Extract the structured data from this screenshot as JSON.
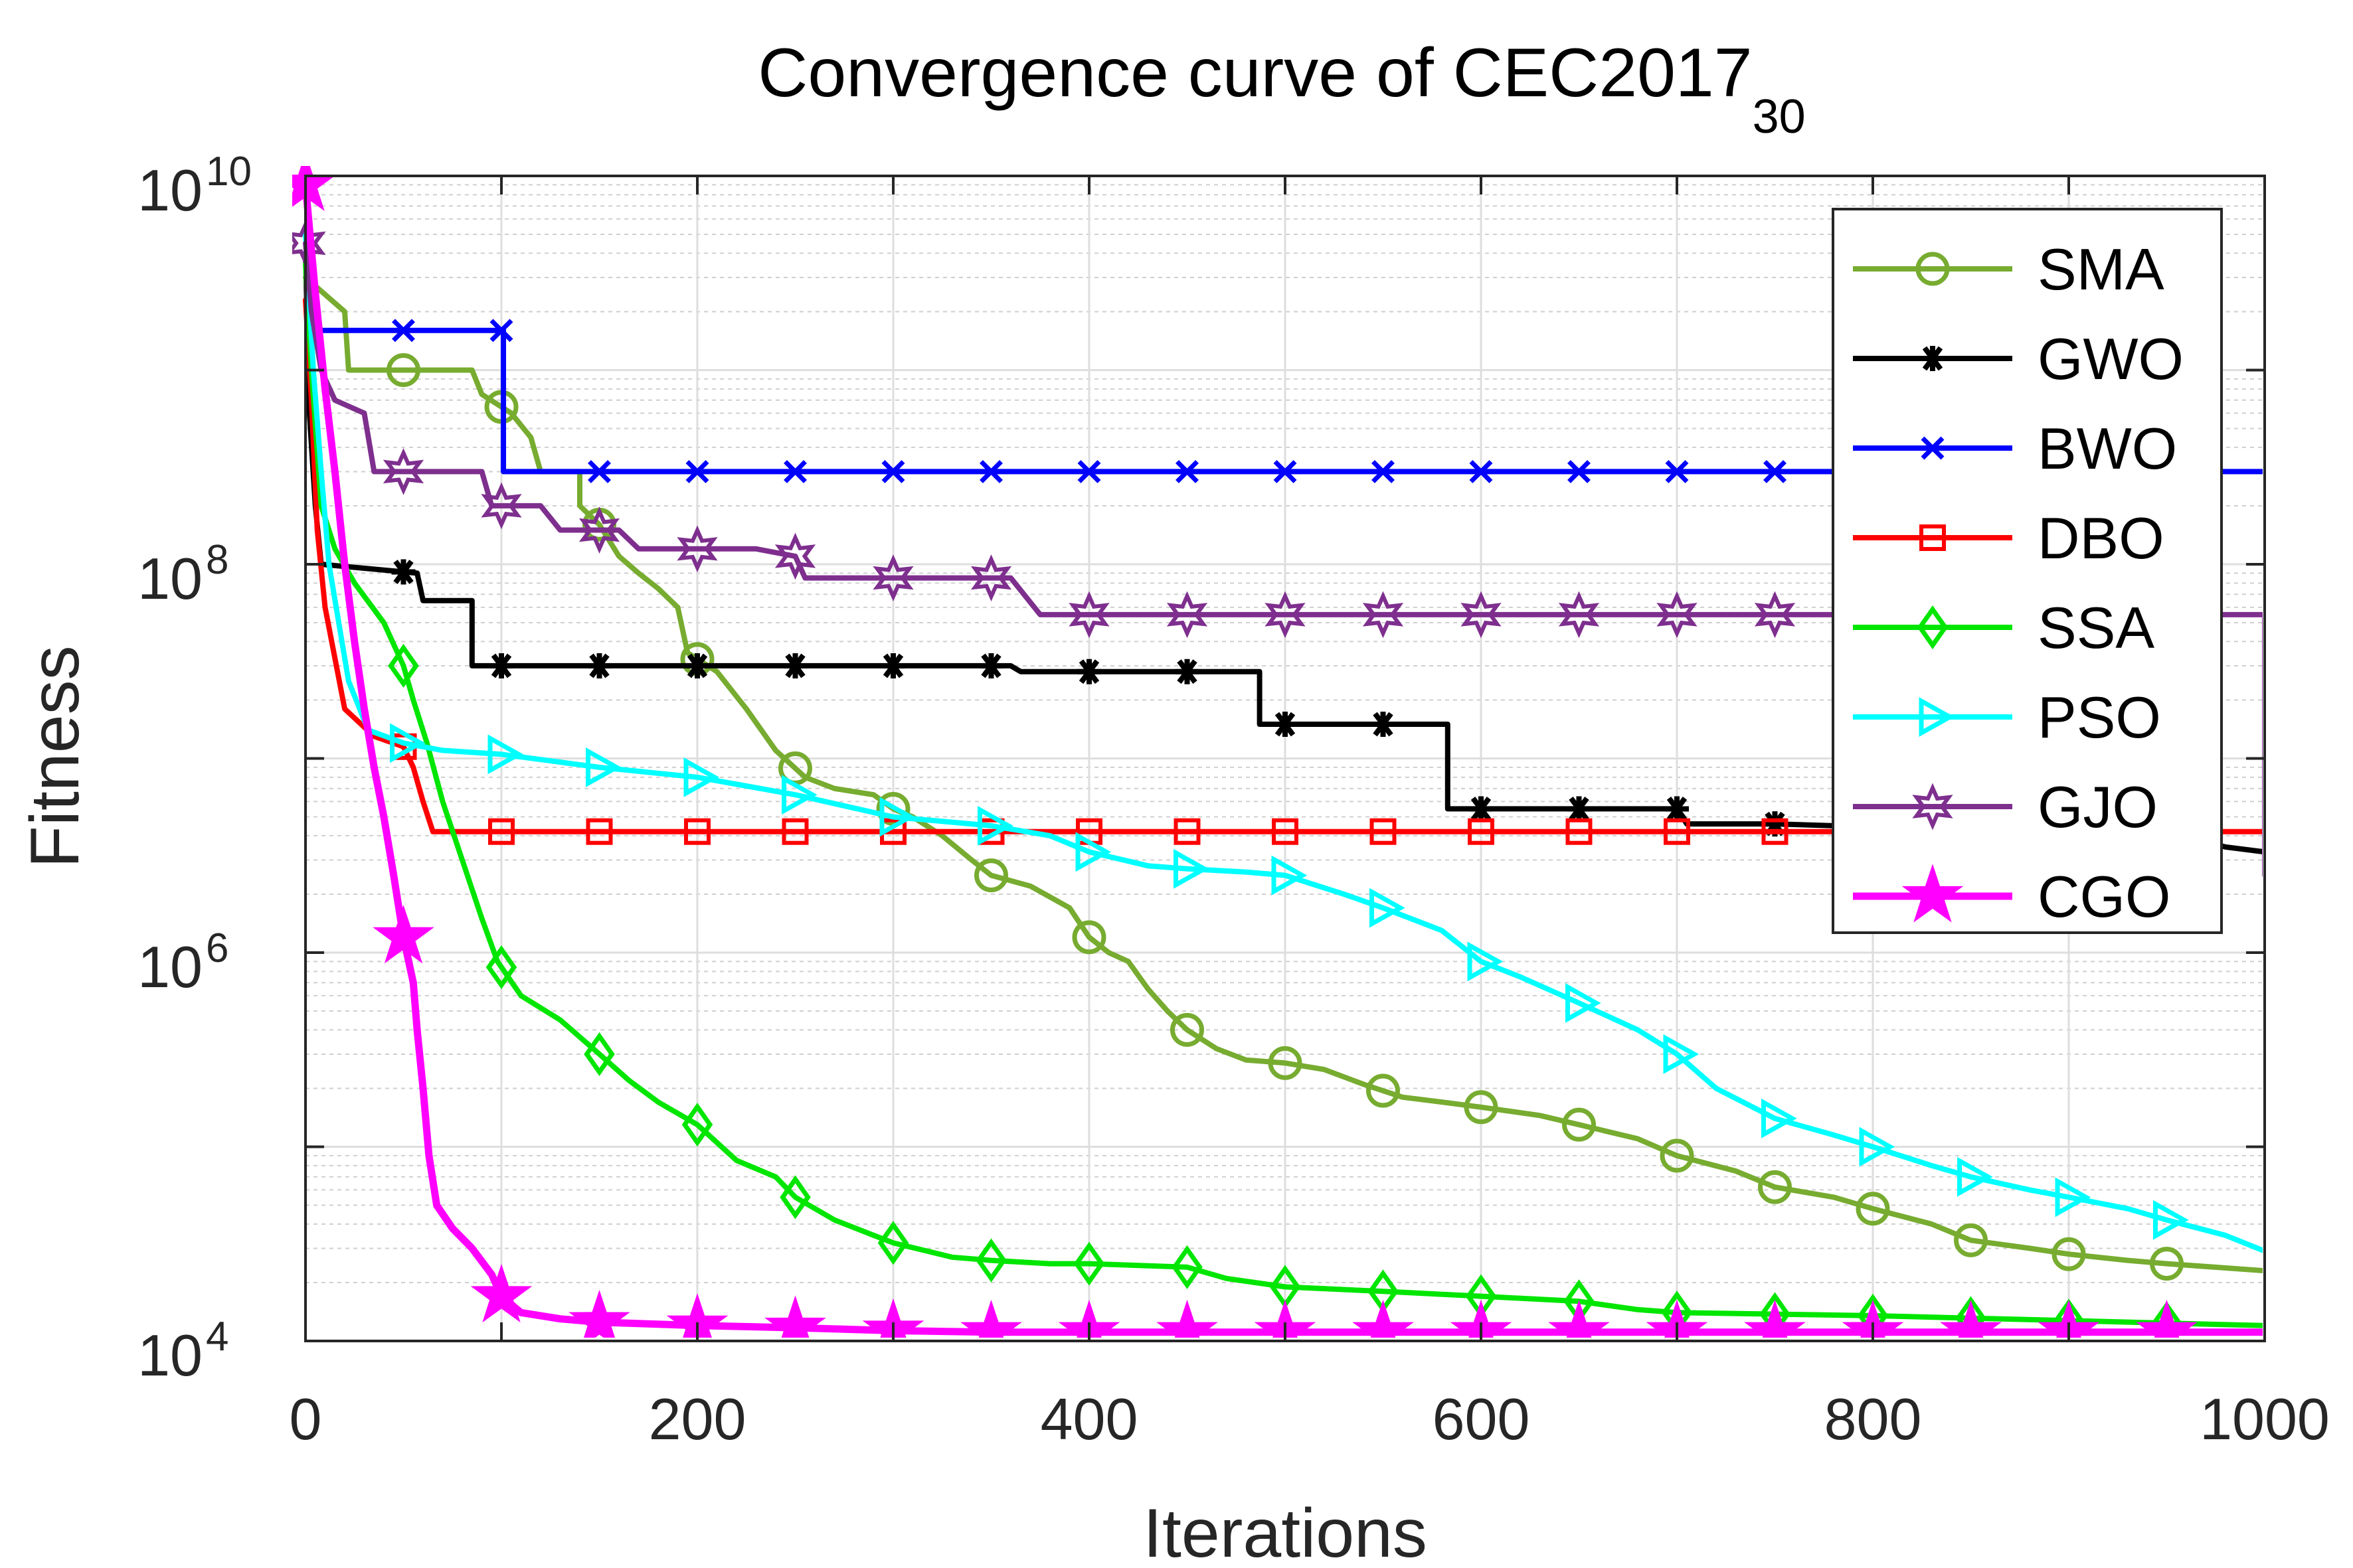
{
  "chart_data": {
    "type": "line",
    "title": {
      "main": "Convergence curve of CEC2017",
      "subscript": "30"
    },
    "xlabel": "Iterations",
    "ylabel": "Fitness",
    "xlim": [
      0,
      1000
    ],
    "ylim": [
      10000,
      10000000000
    ],
    "yscale": "log",
    "grid": true,
    "legend_position": "top-right",
    "x_ticks": [
      {
        "value": 0,
        "label": "0"
      },
      {
        "value": 200,
        "label": "200"
      },
      {
        "value": 400,
        "label": "400"
      },
      {
        "value": 600,
        "label": "600"
      },
      {
        "value": 800,
        "label": "800"
      },
      {
        "value": 1000,
        "label": "1000"
      }
    ],
    "y_ticks": [
      {
        "value": 10000,
        "base": "10",
        "exp": "4"
      },
      {
        "value": 1000000,
        "base": "10",
        "exp": "6"
      },
      {
        "value": 100000000,
        "base": "10",
        "exp": "8"
      },
      {
        "value": 10000000000,
        "base": "10",
        "exp": "10"
      }
    ],
    "series": [
      {
        "name": "SMA",
        "color": "#77ac30",
        "marker": "circle",
        "points": [
          [
            0,
            3000000000
          ],
          [
            20,
            2000000000
          ],
          [
            22,
            1000000000
          ],
          [
            85,
            1000000000
          ],
          [
            90,
            750000000
          ],
          [
            105,
            600000000
          ],
          [
            115,
            450000000
          ],
          [
            120,
            300000000
          ],
          [
            140,
            300000000
          ],
          [
            140,
            200000000
          ],
          [
            150,
            160000000
          ],
          [
            160,
            110000000
          ],
          [
            170,
            90000000
          ],
          [
            180,
            75000000
          ],
          [
            190,
            60000000
          ],
          [
            195,
            35000000
          ],
          [
            210,
            28000000
          ],
          [
            225,
            18000000
          ],
          [
            240,
            11000000
          ],
          [
            255,
            8000000
          ],
          [
            270,
            7000000
          ],
          [
            290,
            6500000
          ],
          [
            300,
            5500000
          ],
          [
            310,
            5000000
          ],
          [
            325,
            4000000
          ],
          [
            340,
            3000000
          ],
          [
            350,
            2500000
          ],
          [
            370,
            2200000
          ],
          [
            390,
            1700000
          ],
          [
            400,
            1200000
          ],
          [
            410,
            1000000
          ],
          [
            420,
            900000
          ],
          [
            430,
            650000
          ],
          [
            440,
            500000
          ],
          [
            450,
            400000
          ],
          [
            465,
            320000
          ],
          [
            480,
            280000
          ],
          [
            500,
            270000
          ],
          [
            520,
            250000
          ],
          [
            540,
            210000
          ],
          [
            560,
            180000
          ],
          [
            580,
            170000
          ],
          [
            600,
            160000
          ],
          [
            630,
            145000
          ],
          [
            650,
            130000
          ],
          [
            680,
            110000
          ],
          [
            700,
            90000
          ],
          [
            730,
            75000
          ],
          [
            750,
            62000
          ],
          [
            780,
            55000
          ],
          [
            800,
            48000
          ],
          [
            830,
            40000
          ],
          [
            850,
            33000
          ],
          [
            880,
            30000
          ],
          [
            900,
            28000
          ],
          [
            930,
            26000
          ],
          [
            950,
            25000
          ],
          [
            1000,
            23000
          ]
        ],
        "marker_x": [
          50,
          100,
          150,
          200,
          250,
          300,
          350,
          400,
          450,
          500,
          550,
          600,
          650,
          700,
          750,
          800,
          850,
          900,
          950
        ]
      },
      {
        "name": "GWO",
        "color": "#000000",
        "marker": "asterisk",
        "points": [
          [
            0,
            4000000000
          ],
          [
            2,
            600000000
          ],
          [
            5,
            200000000
          ],
          [
            8,
            100000000
          ],
          [
            57,
            90000000
          ],
          [
            60,
            65000000
          ],
          [
            85,
            65000000
          ],
          [
            85,
            30000000
          ],
          [
            360,
            30000000
          ],
          [
            365,
            28000000
          ],
          [
            487,
            28000000
          ],
          [
            487,
            15000000
          ],
          [
            583,
            15000000
          ],
          [
            583,
            5500000
          ],
          [
            700,
            5500000
          ],
          [
            705,
            4600000
          ],
          [
            750,
            4600000
          ],
          [
            780,
            4500000
          ],
          [
            850,
            4500000
          ],
          [
            900,
            4500000
          ],
          [
            950,
            4200000
          ],
          [
            980,
            3500000
          ],
          [
            1000,
            3300000
          ]
        ],
        "marker_x": [
          50,
          100,
          150,
          200,
          250,
          300,
          350,
          400,
          450,
          500,
          550,
          600,
          650,
          700,
          750
        ]
      },
      {
        "name": "BWO",
        "color": "#0000ff",
        "marker": "x",
        "points": [
          [
            0,
            4000000000
          ],
          [
            3,
            1600000000
          ],
          [
            101,
            1600000000
          ],
          [
            101,
            300000000
          ],
          [
            1000,
            300000000
          ]
        ],
        "marker_x": [
          50,
          100,
          150,
          200,
          250,
          300,
          350,
          400,
          450,
          500,
          550,
          600,
          650,
          700,
          750
        ]
      },
      {
        "name": "DBO",
        "color": "#ff0000",
        "marker": "square",
        "points": [
          [
            0,
            2300000000
          ],
          [
            3,
            700000000
          ],
          [
            6,
            150000000
          ],
          [
            10,
            60000000
          ],
          [
            20,
            18000000
          ],
          [
            35,
            13000000
          ],
          [
            50,
            11500000
          ],
          [
            55,
            9000000
          ],
          [
            60,
            6000000
          ],
          [
            65,
            4200000
          ],
          [
            1000,
            4200000
          ]
        ],
        "marker_x": [
          50,
          100,
          150,
          200,
          250,
          300,
          350,
          400,
          450,
          500,
          550,
          600,
          650,
          700,
          750
        ]
      },
      {
        "name": "SSA",
        "color": "#00e600",
        "marker": "diamond",
        "points": [
          [
            0,
            3500000000
          ],
          [
            3,
            1000000000
          ],
          [
            8,
            200000000
          ],
          [
            15,
            120000000
          ],
          [
            25,
            80000000
          ],
          [
            40,
            50000000
          ],
          [
            50,
            30000000
          ],
          [
            55,
            20000000
          ],
          [
            62,
            12000000
          ],
          [
            70,
            6000000
          ],
          [
            80,
            3000000
          ],
          [
            90,
            1500000
          ],
          [
            98,
            900000
          ],
          [
            110,
            600000
          ],
          [
            130,
            450000
          ],
          [
            150,
            300000
          ],
          [
            165,
            220000
          ],
          [
            180,
            170000
          ],
          [
            200,
            130000
          ],
          [
            220,
            85000
          ],
          [
            240,
            70000
          ],
          [
            250,
            55000
          ],
          [
            270,
            42000
          ],
          [
            290,
            35000
          ],
          [
            300,
            32000
          ],
          [
            330,
            27000
          ],
          [
            350,
            26000
          ],
          [
            380,
            25000
          ],
          [
            400,
            25000
          ],
          [
            450,
            24000
          ],
          [
            470,
            21000
          ],
          [
            500,
            19000
          ],
          [
            550,
            18000
          ],
          [
            600,
            17000
          ],
          [
            650,
            16000
          ],
          [
            680,
            14500
          ],
          [
            700,
            14000
          ],
          [
            800,
            13500
          ],
          [
            1000,
            12000
          ]
        ],
        "marker_x": [
          50,
          100,
          150,
          200,
          250,
          300,
          350,
          400,
          450,
          500,
          550,
          600,
          650,
          700,
          750,
          800,
          850,
          900,
          950
        ]
      },
      {
        "name": "PSO",
        "color": "#00ffff",
        "marker": "triangle-right",
        "points": [
          [
            0,
            5000000000
          ],
          [
            4,
            1000000000
          ],
          [
            8,
            300000000
          ],
          [
            12,
            100000000
          ],
          [
            17,
            50000000
          ],
          [
            22,
            25000000
          ],
          [
            32,
            14000000
          ],
          [
            50,
            12000000
          ],
          [
            70,
            11000000
          ],
          [
            100,
            10500000
          ],
          [
            150,
            9000000
          ],
          [
            200,
            8000000
          ],
          [
            250,
            6500000
          ],
          [
            300,
            5000000
          ],
          [
            350,
            4500000
          ],
          [
            380,
            4000000
          ],
          [
            400,
            3300000
          ],
          [
            430,
            2800000
          ],
          [
            450,
            2700000
          ],
          [
            480,
            2600000
          ],
          [
            500,
            2500000
          ],
          [
            530,
            2000000
          ],
          [
            550,
            1700000
          ],
          [
            580,
            1300000
          ],
          [
            600,
            900000
          ],
          [
            620,
            750000
          ],
          [
            650,
            550000
          ],
          [
            680,
            400000
          ],
          [
            700,
            300000
          ],
          [
            720,
            200000
          ],
          [
            750,
            140000
          ],
          [
            780,
            115000
          ],
          [
            800,
            100000
          ],
          [
            830,
            80000
          ],
          [
            850,
            70000
          ],
          [
            880,
            60000
          ],
          [
            900,
            55000
          ],
          [
            930,
            48000
          ],
          [
            950,
            42000
          ],
          [
            980,
            35000
          ],
          [
            1000,
            29000
          ]
        ],
        "marker_x": [
          50,
          100,
          150,
          200,
          250,
          300,
          350,
          400,
          450,
          500,
          550,
          600,
          650,
          700,
          750,
          800,
          850,
          900,
          950
        ]
      },
      {
        "name": "GJO",
        "color": "#7e2f8e",
        "marker": "hexagram",
        "points": [
          [
            0,
            4500000000
          ],
          [
            3,
            2000000000
          ],
          [
            8,
            1000000000
          ],
          [
            15,
            700000000
          ],
          [
            30,
            600000000
          ],
          [
            35,
            300000000
          ],
          [
            90,
            300000000
          ],
          [
            95,
            200000000
          ],
          [
            120,
            200000000
          ],
          [
            130,
            150000000
          ],
          [
            160,
            150000000
          ],
          [
            170,
            120000000
          ],
          [
            230,
            120000000
          ],
          [
            250,
            110000000
          ],
          [
            255,
            85000000
          ],
          [
            330,
            85000000
          ],
          [
            360,
            85000000
          ],
          [
            375,
            55000000
          ],
          [
            1000,
            55000000
          ],
          [
            1000,
            2500000
          ]
        ],
        "marker_x": [
          0,
          50,
          100,
          150,
          200,
          250,
          300,
          350,
          400,
          450,
          500,
          550,
          600,
          650,
          700,
          750
        ]
      },
      {
        "name": "CGO",
        "color": "#ff00ff",
        "marker": "pentagram",
        "points": [
          [
            0,
            9000000000
          ],
          [
            5,
            2500000000
          ],
          [
            10,
            800000000
          ],
          [
            15,
            300000000
          ],
          [
            20,
            100000000
          ],
          [
            25,
            40000000
          ],
          [
            30,
            18000000
          ],
          [
            35,
            9000000
          ],
          [
            40,
            5000000
          ],
          [
            45,
            2500000
          ],
          [
            50,
            1200000
          ],
          [
            55,
            700000
          ],
          [
            57,
            400000
          ],
          [
            60,
            200000
          ],
          [
            63,
            90000
          ],
          [
            67,
            50000
          ],
          [
            75,
            38000
          ],
          [
            85,
            30000
          ],
          [
            95,
            22000
          ],
          [
            100,
            17000
          ],
          [
            110,
            14000
          ],
          [
            130,
            13000
          ],
          [
            150,
            12500
          ],
          [
            200,
            12000
          ],
          [
            250,
            11700
          ],
          [
            300,
            11300
          ],
          [
            350,
            11100
          ],
          [
            400,
            11100
          ],
          [
            1000,
            11100
          ]
        ],
        "marker_x": [
          0,
          50,
          100,
          150,
          200,
          250,
          300,
          350,
          400,
          450,
          500,
          550,
          600,
          650,
          700,
          750,
          800,
          850,
          900,
          950
        ]
      }
    ]
  }
}
